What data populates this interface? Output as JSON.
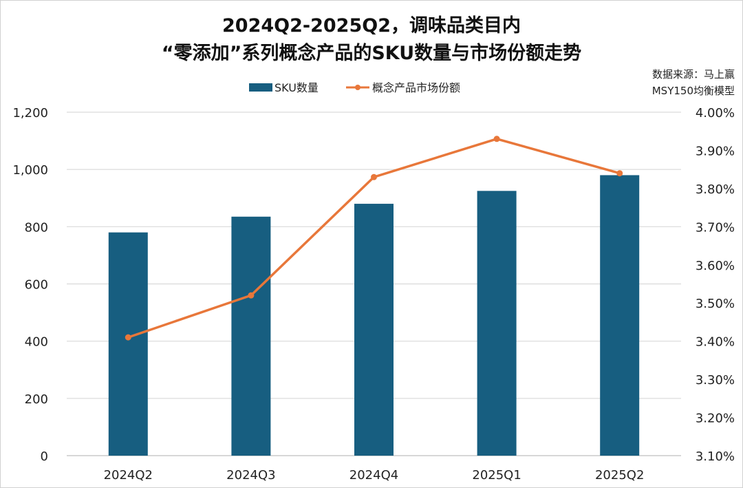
{
  "chart_data": {
    "type": "bar+line",
    "title": [
      "2024Q2-2025Q2，调味品类目内",
      "“零添加”系列概念产品的SKU数量与市场份额走势"
    ],
    "source": [
      "数据来源：马上赢",
      "MSY150均衡模型"
    ],
    "categories": [
      "2024Q2",
      "2024Q3",
      "2024Q4",
      "2025Q1",
      "2025Q2"
    ],
    "series": [
      {
        "name": "SKU数量",
        "type": "bar",
        "axis": "left",
        "color": "#175e80",
        "values": [
          780,
          835,
          880,
          925,
          980
        ]
      },
      {
        "name": "概念产品市场份额",
        "type": "line",
        "axis": "right",
        "color": "#e8773a",
        "values": [
          3.41,
          3.52,
          3.83,
          3.93,
          3.84
        ]
      }
    ],
    "y_left": {
      "range": [
        0,
        1200
      ],
      "ticks": [
        0,
        200,
        400,
        600,
        800,
        1000,
        1200
      ],
      "tick_labels": [
        "0",
        "200",
        "400",
        "600",
        "800",
        "1,000",
        "1,200"
      ]
    },
    "y_right": {
      "range": [
        3.1,
        4.0
      ],
      "ticks": [
        3.1,
        3.2,
        3.3,
        3.4,
        3.5,
        3.6,
        3.7,
        3.8,
        3.9,
        4.0
      ],
      "tick_labels": [
        "3.10%",
        "3.20%",
        "3.30%",
        "3.40%",
        "3.50%",
        "3.60%",
        "3.70%",
        "3.80%",
        "3.90%",
        "4.00%"
      ]
    },
    "grid": true,
    "legend": "top-center"
  }
}
